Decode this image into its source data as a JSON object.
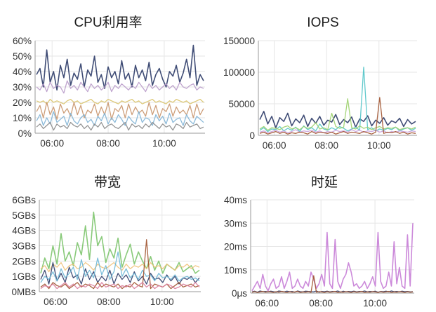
{
  "chart_data": [
    {
      "type": "line",
      "title": "CPU利用率",
      "x_ticks": [
        "06:00",
        "08:00",
        "10:00"
      ],
      "y_ticks": [
        "0%",
        "10%",
        "20%",
        "30%",
        "40%",
        "50%",
        "60%"
      ],
      "ylim": [
        0,
        60
      ],
      "y_unit": "%",
      "grid": true,
      "legend": "none",
      "series": [
        {
          "color": "#2b3a67",
          "values": [
            38,
            42,
            30,
            54,
            33,
            40,
            28,
            44,
            36,
            48,
            31,
            39,
            35,
            45,
            30,
            41,
            37,
            50,
            33,
            38,
            29,
            43,
            36,
            40,
            32,
            47,
            35,
            39,
            30,
            44,
            36,
            41,
            34,
            46,
            31,
            38,
            42,
            35,
            30,
            40,
            37,
            44,
            33,
            39,
            48,
            36,
            57,
            31,
            38,
            34
          ]
        },
        {
          "color": "#b89ac9",
          "values": [
            30,
            28,
            32,
            27,
            33,
            29,
            31,
            30,
            26,
            34,
            29,
            31,
            28,
            33,
            30,
            27,
            32,
            29,
            31,
            28,
            30,
            33,
            27,
            31,
            29,
            32,
            30,
            28,
            31,
            29,
            33,
            30,
            27,
            32,
            29,
            31,
            28,
            30,
            32,
            29,
            31,
            28,
            33,
            30,
            29,
            31,
            32,
            28,
            30,
            29
          ]
        },
        {
          "color": "#d9c36a",
          "values": [
            21,
            20,
            21,
            19,
            22,
            20,
            21,
            20,
            19,
            21,
            22,
            20,
            21,
            19,
            20,
            21,
            22,
            20,
            19,
            21,
            20,
            22,
            21,
            20,
            19,
            21,
            20,
            21,
            22,
            20,
            21,
            19,
            20,
            21,
            22,
            20,
            21,
            20,
            19,
            21,
            20,
            22,
            21,
            20,
            21,
            19,
            20,
            21,
            22,
            20
          ]
        },
        {
          "color": "#c8946a",
          "values": [
            14,
            18,
            10,
            20,
            12,
            17,
            9,
            19,
            13,
            16,
            11,
            20,
            12,
            18,
            10,
            15,
            13,
            19,
            11,
            17,
            12,
            20,
            9,
            16,
            14,
            18,
            10,
            19,
            12,
            17,
            13,
            15,
            11,
            20,
            12,
            18,
            10,
            16,
            14,
            19,
            11,
            17,
            13,
            15,
            12,
            18,
            10,
            19,
            12,
            16
          ]
        },
        {
          "color": "#7fb3d5",
          "values": [
            8,
            12,
            5,
            10,
            6,
            14,
            7,
            9,
            11,
            5,
            13,
            8,
            6,
            10,
            12,
            7,
            9,
            5,
            11,
            8,
            13,
            6,
            10,
            7,
            12,
            9,
            5,
            11,
            8,
            6,
            14,
            7,
            10,
            9,
            5,
            12,
            8,
            11,
            6,
            13,
            7,
            9,
            10,
            5,
            12,
            8,
            6,
            11,
            9,
            7
          ]
        },
        {
          "color": "#8a8a8a",
          "values": [
            4,
            6,
            3,
            5,
            7,
            2,
            6,
            4,
            5,
            3,
            7,
            5,
            4,
            6,
            3,
            5,
            2,
            6,
            4,
            7,
            3,
            5,
            6,
            4,
            3,
            5,
            7,
            2,
            6,
            4,
            5,
            3,
            6,
            4,
            7,
            5,
            3,
            6,
            4,
            5,
            2,
            6,
            5,
            3,
            7,
            4,
            5,
            6,
            3,
            4
          ]
        }
      ]
    },
    {
      "type": "line",
      "title": "IOPS",
      "x_ticks": [
        "06:00",
        "08:00",
        "10:00"
      ],
      "y_ticks": [
        "0",
        "50000",
        "100000",
        "150000"
      ],
      "ylim": [
        0,
        150000
      ],
      "grid": true,
      "legend": "none",
      "series": [
        {
          "color": "#2b3a67",
          "values": [
            25000,
            38000,
            18000,
            30000,
            12000,
            28000,
            22000,
            35000,
            15000,
            26000,
            20000,
            32000,
            14000,
            27000,
            19000,
            30000,
            16000,
            24000,
            21000,
            33000,
            17000,
            25000,
            20000,
            29000,
            13000,
            26000,
            22000,
            31000,
            15000,
            24000,
            19000,
            28000,
            16000,
            23000,
            20000,
            27000,
            14000,
            25000,
            18000,
            22000
          ]
        },
        {
          "color": "#4fc3c7",
          "values": [
            8000,
            12000,
            6000,
            10000,
            9000,
            14000,
            7000,
            11000,
            8000,
            13000,
            6000,
            15000,
            9000,
            12000,
            7000,
            18000,
            10000,
            8000,
            12000,
            9000,
            14000,
            11000,
            7000,
            10000,
            13000,
            8000,
            108000,
            9000,
            12000,
            7000,
            10000,
            8000,
            11000,
            9000,
            13000,
            7000,
            10000,
            12000,
            8000,
            11000
          ]
        },
        {
          "color": "#9bd06a",
          "values": [
            10000,
            14000,
            8000,
            12000,
            11000,
            9000,
            13000,
            15000,
            10000,
            12000,
            9000,
            14000,
            11000,
            13000,
            20000,
            10000,
            12000,
            9000,
            35000,
            14000,
            11000,
            13000,
            58000,
            12000,
            10000,
            15000,
            11000,
            13000,
            9000,
            12000,
            14000,
            10000,
            12000,
            11000,
            13000,
            9000,
            11000,
            12000,
            10000,
            13000
          ]
        },
        {
          "color": "#c9a0dc",
          "values": [
            5000,
            7000,
            4000,
            6000,
            8000,
            5000,
            7000,
            4000,
            6000,
            9000,
            5000,
            7000,
            6000,
            8000,
            5000,
            7000,
            4000,
            6000,
            5000,
            8000,
            6000,
            7000,
            5000,
            9000,
            6000,
            8000,
            5000,
            7000,
            6000,
            8000,
            5000,
            7000,
            4000,
            6000,
            5000,
            7000,
            6000,
            5000,
            7000,
            6000
          ]
        },
        {
          "color": "#a0522d",
          "values": [
            3000,
            5000,
            2000,
            4000,
            6000,
            3000,
            5000,
            2000,
            4000,
            3000,
            5000,
            4000,
            2000,
            6000,
            3000,
            5000,
            4000,
            3000,
            5000,
            2000,
            4000,
            6000,
            3000,
            5000,
            4000,
            3000,
            6000,
            4000,
            2000,
            5000,
            60000,
            3000,
            5000,
            4000,
            6000,
            3000,
            5000,
            2000,
            4000,
            3000
          ]
        }
      ]
    },
    {
      "type": "line",
      "title": "带宽",
      "x_ticks": [
        "06:00",
        "08:00",
        "10:00"
      ],
      "y_ticks": [
        "0MBs",
        "1GBs",
        "2GBs",
        "3GBs",
        "4GBs",
        "5GBs",
        "6GBs"
      ],
      "ylim": [
        0,
        6
      ],
      "y_unit": "GBs",
      "grid": true,
      "legend": "none",
      "series": [
        {
          "color": "#7cc46b",
          "values": [
            1.2,
            2.2,
            1.5,
            3.0,
            1.8,
            3.8,
            2.0,
            2.6,
            1.7,
            3.2,
            2.4,
            4.3,
            2.1,
            5.2,
            3.0,
            3.6,
            1.9,
            2.8,
            2.2,
            3.5,
            1.6,
            2.4,
            3.1,
            1.8,
            2.6,
            2.0,
            1.5,
            2.3,
            1.4,
            2.0,
            1.2,
            1.8,
            1.6,
            1.4,
            1.9,
            1.3,
            1.5,
            1.7,
            1.2,
            1.4
          ]
        },
        {
          "color": "#f0c27a",
          "values": [
            1.5,
            1.7,
            1.3,
            1.8,
            1.6,
            1.9,
            1.4,
            1.7,
            1.8,
            1.5,
            1.6,
            1.9,
            1.7,
            1.4,
            1.8,
            1.6,
            1.5,
            1.7,
            1.9,
            1.6,
            1.4,
            1.8,
            1.5,
            1.7,
            1.6,
            1.8,
            1.5,
            1.9,
            1.6,
            1.7,
            1.5,
            1.8,
            1.6,
            1.4,
            1.7,
            1.6,
            1.8,
            1.5,
            1.7,
            1.6
          ]
        },
        {
          "color": "#2b3a67",
          "values": [
            0.8,
            1.4,
            0.5,
            1.9,
            0.7,
            1.2,
            0.6,
            1.6,
            0.9,
            1.1,
            0.5,
            1.5,
            0.8,
            1.3,
            0.6,
            1.0,
            0.7,
            1.4,
            0.5,
            1.2,
            0.8,
            1.1,
            0.6,
            1.3,
            0.7,
            1.0,
            0.5,
            1.2,
            0.8,
            0.9,
            0.6,
            1.1,
            0.7,
            1.0,
            0.5,
            0.9,
            0.8,
            1.0,
            0.6,
            0.9
          ]
        },
        {
          "color": "#6db7d6",
          "values": [
            0.6,
            1.0,
            0.8,
            1.3,
            0.7,
            1.5,
            0.9,
            1.2,
            1.6,
            0.8,
            2.1,
            1.0,
            1.4,
            0.9,
            2.2,
            1.1,
            1.7,
            0.8,
            1.3,
            2.6,
            1.0,
            1.5,
            0.9,
            1.2,
            0.8,
            1.4,
            1.0,
            1.1,
            0.7,
            1.2,
            0.9,
            1.0,
            0.8,
            1.1,
            0.7,
            0.9,
            1.0,
            0.8,
            0.9,
            0.7
          ]
        },
        {
          "color": "#a0522d",
          "values": [
            0.3,
            0.5,
            0.2,
            0.6,
            0.4,
            0.3,
            0.5,
            0.2,
            0.4,
            0.6,
            0.3,
            0.5,
            0.4,
            0.2,
            0.6,
            0.3,
            0.5,
            0.4,
            0.3,
            0.5,
            0.2,
            0.4,
            0.3,
            0.6,
            0.4,
            0.3,
            3.4,
            0.2,
            0.5,
            0.4,
            0.3,
            0.5,
            0.2,
            0.4,
            0.6,
            0.3,
            0.4,
            0.5,
            0.3,
            0.4
          ]
        },
        {
          "color": "#d97b9a",
          "values": [
            0.2,
            0.4,
            0.3,
            0.5,
            0.2,
            0.4,
            0.6,
            0.3,
            0.5,
            0.2,
            0.4,
            0.3,
            0.5,
            0.4,
            0.2,
            0.6,
            0.3,
            0.4,
            0.5,
            0.2,
            0.4,
            0.3,
            0.5,
            0.2,
            0.4,
            0.6,
            0.3,
            0.5,
            0.2,
            0.4,
            0.3,
            0.5,
            0.4,
            0.2,
            0.3,
            0.5,
            0.4,
            0.3,
            0.6,
            0.3
          ]
        }
      ]
    },
    {
      "type": "line",
      "title": "时延",
      "x_ticks": [
        "06:00",
        "08:00",
        "10:00"
      ],
      "y_ticks": [
        "0μs",
        "10ms",
        "20ms",
        "30ms",
        "40ms"
      ],
      "ylim": [
        0,
        40
      ],
      "y_unit": "ms",
      "grid": true,
      "legend": "none",
      "series": [
        {
          "color": "#c77dd6",
          "values": [
            1,
            3,
            5,
            2,
            8,
            3,
            1,
            4,
            6,
            2,
            3,
            7,
            2,
            5,
            9,
            2,
            3,
            6,
            3,
            2,
            5,
            3,
            9,
            6,
            2,
            4,
            8,
            3,
            26,
            4,
            2,
            23,
            5,
            2,
            6,
            8,
            13,
            9,
            3,
            4,
            2,
            3,
            5,
            2,
            4,
            7,
            3,
            26,
            5,
            2,
            3,
            9,
            3,
            22,
            4,
            11,
            3,
            2,
            25,
            3,
            30
          ]
        },
        {
          "color": "#2b3a67",
          "values": [
            0.5,
            0.8,
            0.4,
            0.9,
            0.6,
            0.7,
            0.5,
            0.8,
            0.6,
            0.4,
            0.9,
            0.7,
            0.5,
            0.8,
            0.6,
            0.7,
            0.4,
            0.9,
            0.6,
            0.5,
            0.8,
            0.7,
            0.6,
            0.5,
            0.9,
            0.4,
            0.7,
            0.6,
            0.8,
            0.5,
            0.7,
            0.6,
            0.9,
            0.4,
            0.8,
            0.5,
            0.7,
            0.6,
            0.8,
            0.5,
            0.7,
            0.6,
            0.9,
            0.5,
            0.7,
            0.6,
            0.8,
            0.4,
            0.7,
            0.6,
            0.8,
            0.5,
            0.9,
            0.6,
            0.7,
            0.5,
            0.8,
            0.6,
            0.7,
            0.5,
            0.6
          ]
        },
        {
          "color": "#a0522d",
          "values": [
            0.4,
            0.6,
            0.3,
            0.5,
            0.7,
            0.4,
            0.6,
            0.5,
            0.3,
            0.6,
            0.4,
            0.7,
            0.5,
            0.3,
            0.6,
            0.4,
            0.5,
            0.7,
            0.3,
            0.5,
            0.4,
            0.6,
            0.3,
            7.5,
            0.4,
            0.6,
            0.5,
            0.3,
            0.6,
            0.4,
            0.5,
            0.7,
            0.3,
            0.5,
            0.4,
            0.6,
            0.5,
            0.3,
            0.6,
            0.4,
            0.5,
            0.7,
            0.3,
            0.5,
            0.4,
            0.6,
            0.5,
            0.3,
            0.6,
            0.4,
            0.5,
            0.7,
            0.3,
            0.5,
            0.4,
            0.6,
            0.5,
            0.3,
            0.6,
            0.4,
            0.5
          ]
        }
      ]
    }
  ]
}
